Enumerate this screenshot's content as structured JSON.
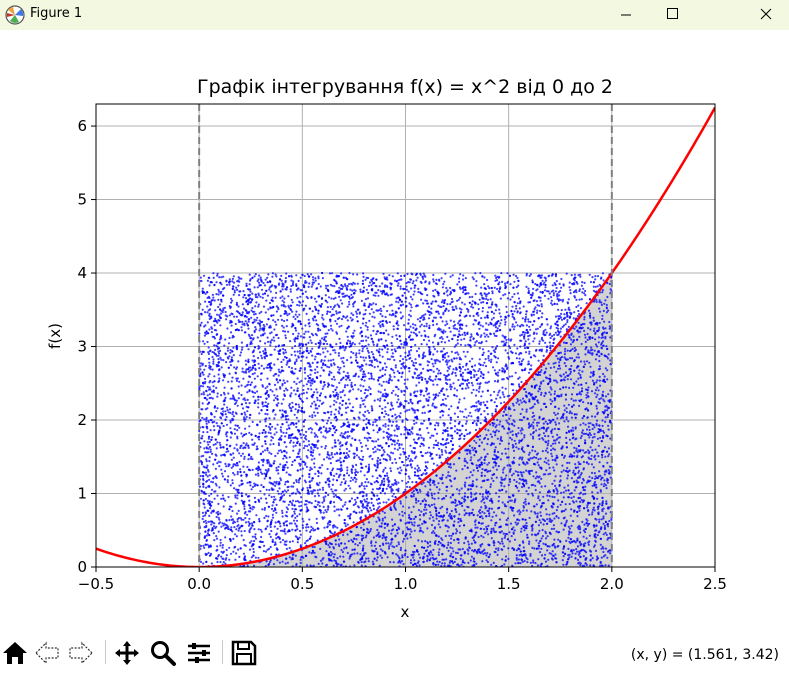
{
  "window": {
    "title": "Figure 1",
    "app_icon": "matplotlib-icon"
  },
  "controls": {
    "minimize": "minimize-icon",
    "maximize": "maximize-icon",
    "close": "close-icon"
  },
  "toolbar": {
    "icons": [
      "home-icon",
      "back-arrow-icon",
      "forward-arrow-icon",
      "pan-icon",
      "zoom-icon",
      "configure-subplots-icon",
      "save-icon"
    ],
    "coordinates": "(x, y) = (1.561, 3.42)"
  },
  "chart_data": {
    "type": "scatter",
    "title": "Графік інтегрування f(x) = x^2 від 0 до 2",
    "xlabel": "x",
    "ylabel": "f(x)",
    "xlim": [
      -0.5,
      2.5
    ],
    "ylim": [
      0,
      6.3
    ],
    "xticks": [
      -0.5,
      0.0,
      0.5,
      1.0,
      1.5,
      2.0,
      2.5
    ],
    "xtick_labels": [
      "−0.5",
      "0.0",
      "0.5",
      "1.0",
      "1.5",
      "2.0",
      "2.5"
    ],
    "yticks": [
      0,
      1,
      2,
      3,
      4,
      5,
      6
    ],
    "ytick_labels": [
      "0",
      "1",
      "2",
      "3",
      "4",
      "5",
      "6"
    ],
    "grid": true,
    "curve": {
      "function": "x^2",
      "x_range": [
        -0.5,
        2.5
      ],
      "color": "#ff0000"
    },
    "fill": {
      "under": "x^2",
      "x_range": [
        0,
        2
      ],
      "color": "#d3d3d3"
    },
    "vlines": [
      {
        "x": 0,
        "style": "dashed",
        "color": "#808080"
      },
      {
        "x": 2,
        "style": "dashed",
        "color": "#808080"
      }
    ],
    "scatter": {
      "x_range": [
        0,
        2
      ],
      "y_range": [
        0,
        4
      ],
      "approx_count": 9000,
      "color": "#0000ff"
    }
  }
}
